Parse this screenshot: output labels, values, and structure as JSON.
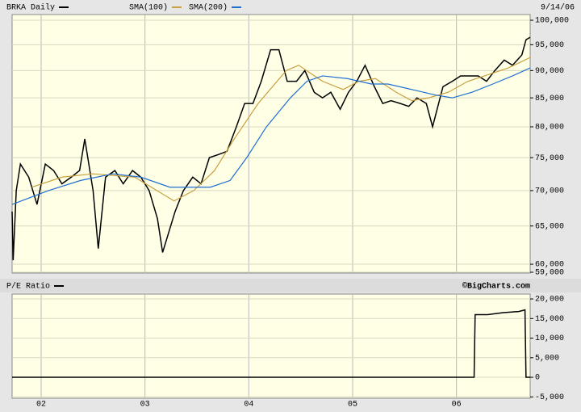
{
  "chart_data": [
    {
      "type": "line",
      "log_scale": true,
      "grid": true,
      "date": "9/14/06",
      "xlim": [
        2001.72,
        2006.71
      ],
      "xticks": [
        {
          "value": 2002,
          "label": "02"
        },
        {
          "value": 2003,
          "label": "03"
        },
        {
          "value": 2004,
          "label": "04"
        },
        {
          "value": 2005,
          "label": "05"
        },
        {
          "value": 2006,
          "label": "06"
        }
      ],
      "ylim": [
        58900,
        101200
      ],
      "yticks": [
        {
          "value": 59000,
          "label": "59,000"
        },
        {
          "value": 60000,
          "label": "60,000"
        },
        {
          "value": 65000,
          "label": "65,000"
        },
        {
          "value": 70000,
          "label": "70,000"
        },
        {
          "value": 75000,
          "label": "75,000"
        },
        {
          "value": 80000,
          "label": "80,000"
        },
        {
          "value": 85000,
          "label": "85,000"
        },
        {
          "value": 90000,
          "label": "90,000"
        },
        {
          "value": 95000,
          "label": "95,000"
        },
        {
          "value": 100000,
          "label": "100,000"
        }
      ],
      "series": [
        {
          "name": "BRKA Daily",
          "color": "#000000",
          "x": [
            2001.72,
            2001.73,
            2001.76,
            2001.8,
            2001.88,
            2001.96,
            2002.04,
            2002.12,
            2002.2,
            2002.29,
            2002.37,
            2002.42,
            2002.5,
            2002.55,
            2002.62,
            2002.71,
            2002.79,
            2002.88,
            2002.96,
            2003.04,
            2003.12,
            2003.17,
            2003.29,
            2003.37,
            2003.46,
            2003.54,
            2003.62,
            2003.71,
            2003.79,
            2003.88,
            2003.96,
            2004.04,
            2004.12,
            2004.21,
            2004.29,
            2004.37,
            2004.46,
            2004.54,
            2004.63,
            2004.71,
            2004.79,
            2004.88,
            2004.96,
            2005.04,
            2005.12,
            2005.21,
            2005.29,
            2005.37,
            2005.46,
            2005.54,
            2005.62,
            2005.71,
            2005.77,
            2005.87,
            2005.96,
            2006.04,
            2006.12,
            2006.21,
            2006.29,
            2006.37,
            2006.46,
            2006.54,
            2006.63,
            2006.67,
            2006.71
          ],
          "values": [
            67000,
            60500,
            70000,
            74000,
            72000,
            68000,
            74000,
            73000,
            71000,
            72000,
            73000,
            78000,
            70000,
            62000,
            72000,
            73000,
            71000,
            73000,
            72000,
            70000,
            66000,
            61500,
            67000,
            70000,
            72000,
            71000,
            75000,
            75500,
            76000,
            80000,
            84000,
            84000,
            88000,
            94000,
            94000,
            88000,
            88000,
            90000,
            86000,
            85000,
            86000,
            83000,
            86000,
            88000,
            91000,
            87000,
            84000,
            84500,
            84000,
            83500,
            85000,
            84000,
            80000,
            87000,
            88000,
            89000,
            89000,
            89000,
            88000,
            90000,
            92000,
            91000,
            93000,
            96000,
            96500
          ]
        },
        {
          "name": "SMA(100)",
          "color": "#c8a040",
          "x": [
            2001.91,
            2002.2,
            2002.5,
            2002.9,
            2003.28,
            2003.47,
            2003.67,
            2003.86,
            2004.09,
            2004.36,
            2004.48,
            2004.71,
            2004.91,
            2005.06,
            2005.22,
            2005.42,
            2005.57,
            2005.73,
            2005.92,
            2006.11,
            2006.27,
            2006.5,
            2006.71
          ],
          "values": [
            70500,
            72000,
            72500,
            72000,
            68500,
            70000,
            73000,
            78000,
            84000,
            90000,
            91000,
            88000,
            86500,
            88000,
            88500,
            86000,
            84500,
            85000,
            86000,
            88000,
            89000,
            90500,
            92500
          ]
        },
        {
          "name": "SMA(200)",
          "color": "#1f6fd0",
          "x": [
            2001.72,
            2002.07,
            2002.38,
            2002.69,
            2002.96,
            2003.24,
            2003.63,
            2003.82,
            2003.98,
            2004.17,
            2004.4,
            2004.56,
            2004.71,
            2004.95,
            2005.18,
            2005.34,
            2005.57,
            2005.8,
            2005.96,
            2006.15,
            2006.35,
            2006.54,
            2006.71
          ],
          "values": [
            68000,
            70000,
            71500,
            72500,
            72000,
            70500,
            70500,
            71500,
            75000,
            80000,
            85000,
            88000,
            89000,
            88500,
            87500,
            87500,
            86500,
            85500,
            85000,
            86000,
            87500,
            89000,
            90500
          ]
        }
      ]
    },
    {
      "type": "line",
      "grid": true,
      "credit": "©BigCharts.com",
      "xlim": [
        2001.72,
        2006.71
      ],
      "xticks": [
        {
          "value": 2002,
          "label": "02"
        },
        {
          "value": 2003,
          "label": "03"
        },
        {
          "value": 2004,
          "label": "04"
        },
        {
          "value": 2005,
          "label": "05"
        },
        {
          "value": 2006,
          "label": "06"
        }
      ],
      "ylim": [
        -5350,
        21250
      ],
      "yticks": [
        {
          "value": -5000,
          "label": "-5,000"
        },
        0,
        {
          "value": 5000,
          "label": "5,000"
        },
        {
          "value": 10000,
          "label": "10,000"
        },
        {
          "value": 15000,
          "label": "15,000"
        },
        {
          "value": 20000,
          "label": "20,000"
        }
      ],
      "series": [
        {
          "name": "P/E Ratio",
          "color": "#000000",
          "x": [
            2001.72,
            2006.17,
            2006.18,
            2006.3,
            2006.45,
            2006.6,
            2006.66,
            2006.67,
            2006.71
          ],
          "values": [
            0,
            0,
            16000,
            16000,
            16500,
            16800,
            17200,
            0,
            0
          ]
        }
      ]
    }
  ]
}
